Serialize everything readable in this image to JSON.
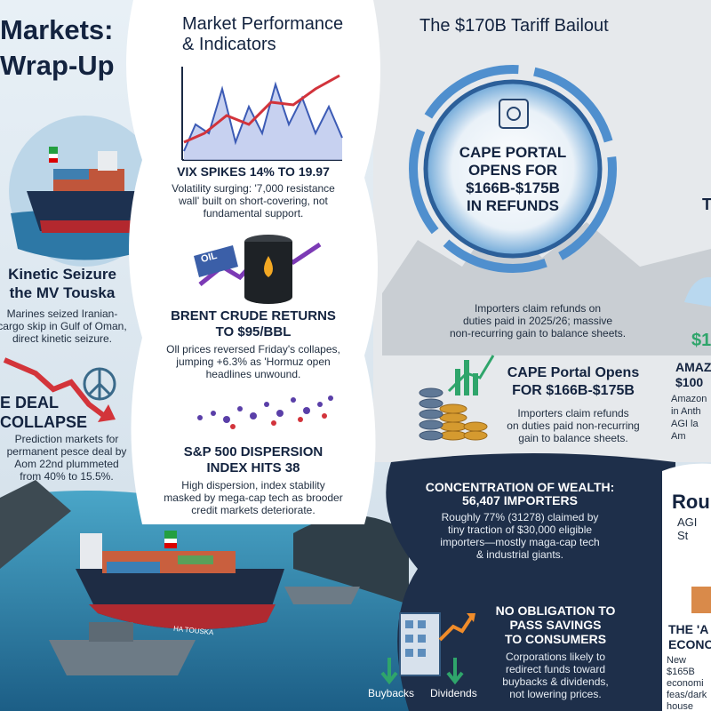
{
  "left": {
    "title": "Markets:\nWrap-Up",
    "seizure_heading": "Kinetic Seizure\nthe MV Touska",
    "seizure_body": "Marines seized Iranian-\ncargo skip in Gulf of Oman,\ndirect kinetic seizure.",
    "deal_heading": "E DEAL\nCOLLAPSE",
    "deal_body": "Prediction markets for\npermanent pesce deal by\nAom 22nd plummeted\nfrom 40% to 15.5%.",
    "ship_name": "HA TOUSKA"
  },
  "middle": {
    "title": "Market Performance\n& Indicators",
    "vix_heading": "VIX SPIKES 14% TO 19.97",
    "vix_body": "Volatility surging: '7,000 resistance\nwall' built on short-covering, not\nfundamental support.",
    "oil_tag": "OIL",
    "brent_heading": "BRENT CRUDE RETURNS\nTO $95/BBL",
    "brent_body": "Oll prices reversed Friday's collapes,\njumping +6.3% as 'Hormuz open\nheadlines unwound.",
    "sp_heading": "S&P 500 DISPERSION\nINDEX HITS 38",
    "sp_body": "High dispersion, index stability\nmasked by mega-cap tech as brooder\ncredit markets deteriorate."
  },
  "right": {
    "title": "The $170B Tariff Bailout",
    "portal_heading": "CAPE PORTAL\nOPENS FOR\n$166B-$175B\nIN REFUNDS",
    "portal_body": "Importers claim refunds on\nduties paid in 2025/26; massive\nnon-recurring gain to balance sheets.",
    "cape_heading": "CAPE Portal Opens\nFOR $166B-$175B",
    "cape_body": "Importers claim refunds\non duties paid non-recurring\ngain to balance sheets.",
    "edge_letter": "T",
    "amazon_amount": "$1",
    "amazon_heading": "AMAZ\n$100",
    "amazon_body": "Amazon\nin Anth\nAGI la\nAm"
  },
  "bottom": {
    "wealth_heading": "CONCENTRATION OF WEALTH:",
    "wealth_count": "56,407 IMPORTERS",
    "wealth_body": "Roughly 77% (31278) claimed by\ntiny traction of $30,000 eligible\nimporters—mostly maga-cap tech\n& industrial giants.",
    "savings_heading": "NO OBLIGATION TO\nPASS SAVINGS\nTO CONSUMERS",
    "savings_body": "Corporations likely to\nredirect funds toward\nbuybacks & dividends,\nnot lowering prices.",
    "buybacks": "Buybacks",
    "dividends": "Dividends"
  },
  "corner": {
    "heading": "Rou",
    "subheading": "AGI St",
    "card_heading": "THE 'A\nECONO",
    "card_body": "New $165B\neconomi\nfeas/dark\nhouse"
  }
}
